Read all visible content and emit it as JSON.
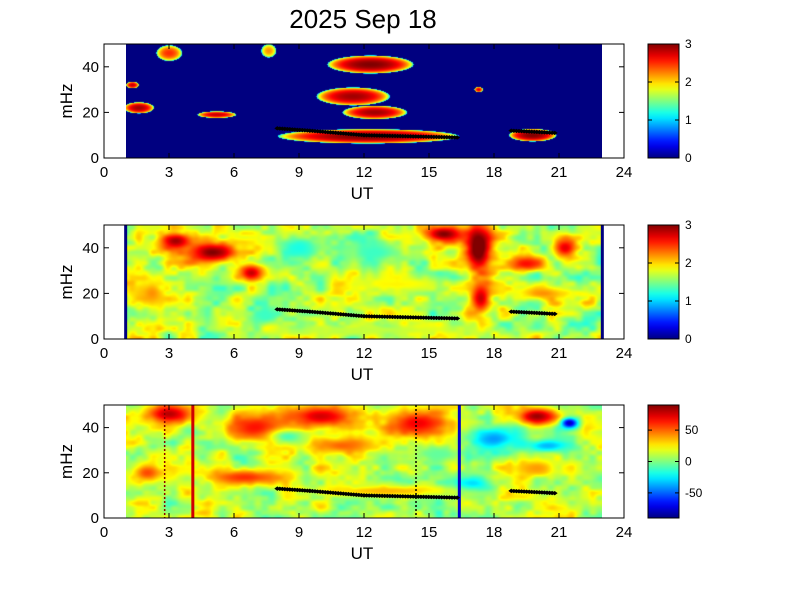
{
  "figure": {
    "title": "2025 Sep 18"
  },
  "chart_data": [
    {
      "type": "heatmap",
      "xlabel": "UT",
      "ylabel": "mHz",
      "xlim": [
        0,
        24
      ],
      "ylim": [
        0,
        50
      ],
      "xticks": [
        0,
        3,
        6,
        9,
        12,
        15,
        18,
        21,
        24
      ],
      "yticks": [
        0,
        20,
        40
      ],
      "data_range_ut": [
        1,
        23
      ],
      "colorbar": {
        "range": [
          0,
          3
        ],
        "ticks": [
          0,
          1,
          2,
          3
        ],
        "colormap": "jet"
      },
      "background_level": 0,
      "features": [
        {
          "type": "blob",
          "x": 12.3,
          "y": 41,
          "rx": 2.0,
          "ry": 4,
          "level": 3
        },
        {
          "type": "blob",
          "x": 11.5,
          "y": 27,
          "rx": 1.7,
          "ry": 4,
          "level": 2.9
        },
        {
          "type": "blob",
          "x": 12.5,
          "y": 20,
          "rx": 1.5,
          "ry": 3,
          "level": 2.9
        },
        {
          "type": "blob",
          "x": 12.2,
          "y": 9.5,
          "rx": 4.2,
          "ry": 3.2,
          "level": 3
        },
        {
          "type": "blob",
          "x": 19.8,
          "y": 10,
          "rx": 1.1,
          "ry": 2.8,
          "level": 3
        },
        {
          "type": "blob",
          "x": 1.6,
          "y": 22,
          "rx": 0.7,
          "ry": 2.5,
          "level": 2.9
        },
        {
          "type": "blob",
          "x": 3.0,
          "y": 46,
          "rx": 0.6,
          "ry": 3.5,
          "level": 2.5
        },
        {
          "type": "blob",
          "x": 5.2,
          "y": 19,
          "rx": 0.9,
          "ry": 1.5,
          "level": 2.8
        },
        {
          "type": "blob",
          "x": 7.6,
          "y": 47,
          "rx": 0.35,
          "ry": 3,
          "level": 2.2
        },
        {
          "type": "blob",
          "x": 17.3,
          "y": 30,
          "rx": 0.2,
          "ry": 1.2,
          "level": 2.7
        },
        {
          "type": "blob",
          "x": 1.3,
          "y": 32,
          "rx": 0.3,
          "ry": 1.5,
          "level": 2.8
        }
      ],
      "markers": {
        "color": "#000000",
        "segments": [
          {
            "x0": 8.0,
            "y0": 13,
            "x1": 9.5,
            "y1": 12
          },
          {
            "x0": 9.5,
            "y0": 12,
            "x1": 12.0,
            "y1": 10
          },
          {
            "x0": 12.0,
            "y0": 10,
            "x1": 16.3,
            "y1": 9
          },
          {
            "x0": 18.8,
            "y0": 12,
            "x1": 20.8,
            "y1": 11
          }
        ]
      }
    },
    {
      "type": "heatmap",
      "xlabel": "UT",
      "ylabel": "mHz",
      "xlim": [
        0,
        24
      ],
      "ylim": [
        0,
        50
      ],
      "xticks": [
        0,
        3,
        6,
        9,
        12,
        15,
        18,
        21,
        24
      ],
      "yticks": [
        0,
        20,
        40
      ],
      "data_range_ut": [
        1,
        23
      ],
      "colorbar": {
        "range": [
          0,
          3
        ],
        "ticks": [
          0,
          1,
          2,
          3
        ],
        "colormap": "jet"
      },
      "background_level": 1.7,
      "features": [
        {
          "type": "blob",
          "x": 17.3,
          "y": 40,
          "rx": 0.8,
          "ry": 14,
          "level": 3.2
        },
        {
          "type": "blob",
          "x": 17.4,
          "y": 18,
          "rx": 0.6,
          "ry": 9,
          "level": 2.8
        },
        {
          "type": "blob",
          "x": 15.7,
          "y": 46,
          "rx": 1.2,
          "ry": 5,
          "level": 3
        },
        {
          "type": "blob",
          "x": 5.0,
          "y": 38,
          "rx": 1.6,
          "ry": 6,
          "level": 3
        },
        {
          "type": "blob",
          "x": 6.8,
          "y": 29,
          "rx": 0.8,
          "ry": 5,
          "level": 2.8
        },
        {
          "type": "blob",
          "x": 3.3,
          "y": 43,
          "rx": 1.0,
          "ry": 5,
          "level": 2.9
        },
        {
          "type": "blob",
          "x": 19.5,
          "y": 33,
          "rx": 1.0,
          "ry": 4,
          "level": 2.6
        },
        {
          "type": "blob",
          "x": 21.3,
          "y": 40,
          "rx": 0.7,
          "ry": 6,
          "level": 2.7
        },
        {
          "type": "blob",
          "x": 9.0,
          "y": 40,
          "rx": 1.5,
          "ry": 8,
          "level": 1.2
        },
        {
          "type": "blob",
          "x": 12.5,
          "y": 38,
          "rx": 2.0,
          "ry": 8,
          "level": 1.3
        },
        {
          "type": "blob",
          "x": 7.5,
          "y": 10,
          "rx": 0.8,
          "ry": 4,
          "level": 1.3
        },
        {
          "type": "blob",
          "x": 13.5,
          "y": 24,
          "rx": 3.0,
          "ry": 5,
          "level": 1.9
        },
        {
          "type": "blob",
          "x": 2.2,
          "y": 20,
          "rx": 0.9,
          "ry": 8,
          "level": 2.2
        },
        {
          "type": "blob",
          "x": 12.0,
          "y": 4,
          "rx": 6.0,
          "ry": 3,
          "level": 1.7
        },
        {
          "type": "blob",
          "x": 20.3,
          "y": 20,
          "rx": 1.5,
          "ry": 4,
          "level": 2.2
        }
      ],
      "edge_bars": [
        {
          "x": 1.0,
          "level": 0
        },
        {
          "x": 23.0,
          "level": 0
        }
      ],
      "markers": {
        "color": "#000000",
        "segments": [
          {
            "x0": 8.0,
            "y0": 13,
            "x1": 9.5,
            "y1": 12
          },
          {
            "x0": 9.5,
            "y0": 12,
            "x1": 12.0,
            "y1": 10
          },
          {
            "x0": 12.0,
            "y0": 10,
            "x1": 16.3,
            "y1": 9
          },
          {
            "x0": 18.8,
            "y0": 12,
            "x1": 20.8,
            "y1": 11
          }
        ]
      }
    },
    {
      "type": "heatmap",
      "xlabel": "UT",
      "ylabel": "mHz",
      "xlim": [
        0,
        24
      ],
      "ylim": [
        0,
        50
      ],
      "xticks": [
        0,
        3,
        6,
        9,
        12,
        15,
        18,
        21,
        24
      ],
      "yticks": [
        0,
        20,
        40
      ],
      "data_range_ut": [
        1,
        23
      ],
      "colorbar": {
        "range": [
          -90,
          90
        ],
        "ticks": [
          -50,
          0,
          50
        ],
        "colormap": "jet"
      },
      "background_level": 10,
      "features": [
        {
          "type": "blob",
          "x": 3.0,
          "y": 46,
          "rx": 1.5,
          "ry": 6,
          "level": 80
        },
        {
          "type": "blob",
          "x": 7.0,
          "y": 40,
          "rx": 1.8,
          "ry": 8,
          "level": 65
        },
        {
          "type": "blob",
          "x": 10.0,
          "y": 45,
          "rx": 2.2,
          "ry": 7,
          "level": 75
        },
        {
          "type": "blob",
          "x": 14.5,
          "y": 42,
          "rx": 2.0,
          "ry": 8,
          "level": 70
        },
        {
          "type": "blob",
          "x": 20.0,
          "y": 45,
          "rx": 1.2,
          "ry": 5,
          "level": 85
        },
        {
          "type": "blob",
          "x": 11.0,
          "y": 32,
          "rx": 2.0,
          "ry": 5,
          "level": 50
        },
        {
          "type": "blob",
          "x": 6.5,
          "y": 18,
          "rx": 2.5,
          "ry": 5,
          "level": 60
        },
        {
          "type": "blob",
          "x": 2.0,
          "y": 20,
          "rx": 1.0,
          "ry": 6,
          "level": 55
        },
        {
          "type": "blob",
          "x": 18.0,
          "y": 35,
          "rx": 1.5,
          "ry": 6,
          "level": -40
        },
        {
          "type": "blob",
          "x": 20.5,
          "y": 32,
          "rx": 1.5,
          "ry": 4,
          "level": -35
        },
        {
          "type": "blob",
          "x": 17.0,
          "y": 15,
          "rx": 1.2,
          "ry": 5,
          "level": -30
        },
        {
          "type": "blob",
          "x": 20.0,
          "y": 22,
          "rx": 1.2,
          "ry": 5,
          "level": 40
        },
        {
          "type": "blob",
          "x": 13.0,
          "y": 12,
          "rx": 4.0,
          "ry": 3,
          "level": 35
        },
        {
          "type": "blob",
          "x": 8.5,
          "y": 36,
          "rx": 1.0,
          "ry": 4,
          "level": -10
        },
        {
          "type": "blob",
          "x": 15.5,
          "y": 28,
          "rx": 1.5,
          "ry": 4,
          "level": -5
        },
        {
          "type": "blob",
          "x": 21.5,
          "y": 42,
          "rx": 0.5,
          "ry": 3,
          "level": -80
        }
      ],
      "vlines": [
        {
          "x": 2.8,
          "style": "dotted",
          "color": "#8b0000"
        },
        {
          "x": 4.1,
          "style": "solid",
          "color": "#d00000"
        },
        {
          "x": 14.4,
          "style": "dotted",
          "color": "#000000"
        },
        {
          "x": 16.4,
          "style": "solid",
          "color": "#0000c8"
        }
      ],
      "markers": {
        "color": "#000000",
        "segments": [
          {
            "x0": 8.0,
            "y0": 13,
            "x1": 9.5,
            "y1": 12
          },
          {
            "x0": 9.5,
            "y0": 12,
            "x1": 12.0,
            "y1": 10
          },
          {
            "x0": 12.0,
            "y0": 10,
            "x1": 16.3,
            "y1": 9
          },
          {
            "x0": 18.8,
            "y0": 12,
            "x1": 20.8,
            "y1": 11
          }
        ]
      }
    }
  ]
}
